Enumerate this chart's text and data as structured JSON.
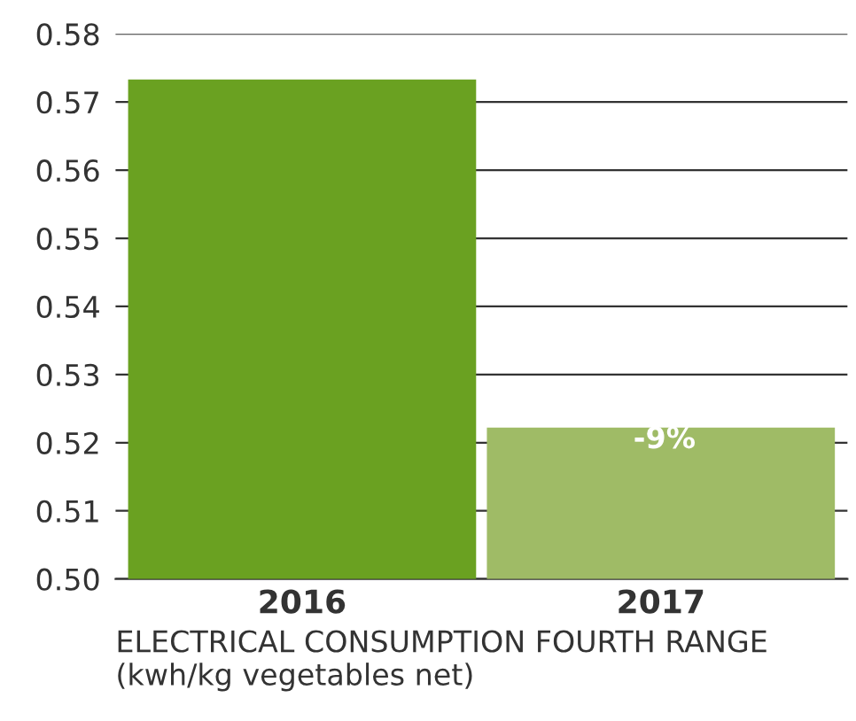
{
  "chart_data": {
    "type": "bar",
    "xlabel": "ELECTRICAL CONSUMPTION FOURTH RANGE\n(kwh/kg vegetables net)",
    "categories": [
      "2016",
      "2017"
    ],
    "values": [
      0.5733,
      0.5222
    ],
    "colors": [
      "#6aa121",
      "#9fbb66"
    ],
    "annotations": [
      "-9%"
    ],
    "ylim": [
      0.5,
      0.58
    ],
    "yticks": [
      {
        "value": 0.5,
        "label": "0.50"
      },
      {
        "value": 0.51,
        "label": "0.51"
      },
      {
        "value": 0.52,
        "label": "0.52"
      },
      {
        "value": 0.53,
        "label": "0.53"
      },
      {
        "value": 0.54,
        "label": "0.54"
      },
      {
        "value": 0.55,
        "label": "0.55"
      },
      {
        "value": 0.56,
        "label": "0.56"
      },
      {
        "value": 0.57,
        "label": "0.57"
      },
      {
        "value": 0.58,
        "label": "0.58"
      }
    ],
    "grid": "y"
  }
}
